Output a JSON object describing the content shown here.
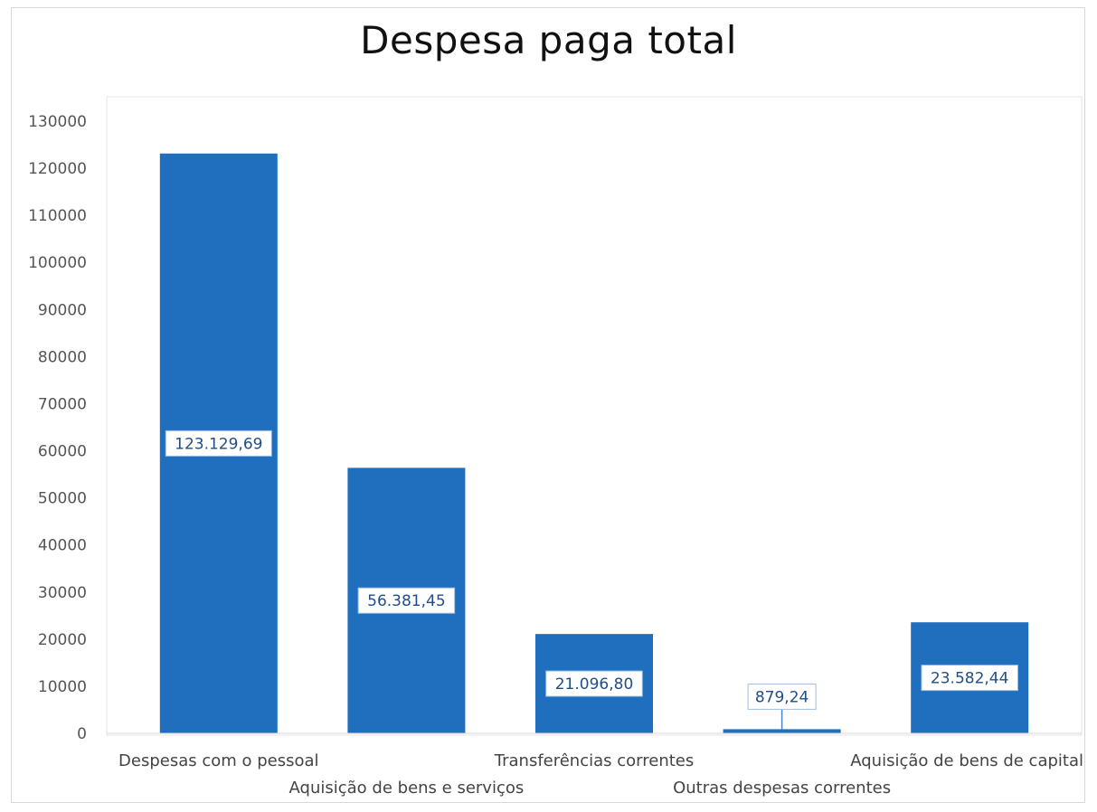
{
  "chart_data": {
    "type": "bar",
    "title": "Despesa paga total",
    "xlabel": "",
    "ylabel": "",
    "categories": [
      "Despesas com o pessoal",
      "Aquisição de bens e serviços",
      "Transferências correntes",
      "Outras despesas correntes",
      "Aquisição de bens de capital"
    ],
    "values": [
      123129.69,
      56381.45,
      21096.8,
      879.24,
      23582.44
    ],
    "data_labels": [
      "123.129,69",
      "56.381,45",
      "21.096,80",
      "879,24",
      "23.582,44"
    ],
    "yticks": [
      0,
      10000,
      20000,
      30000,
      40000,
      50000,
      60000,
      70000,
      80000,
      90000,
      100000,
      110000,
      120000,
      130000
    ],
    "ylim": [
      0,
      130000
    ],
    "grid": false,
    "legend": "none",
    "bar_color": "#1f6fbe"
  }
}
